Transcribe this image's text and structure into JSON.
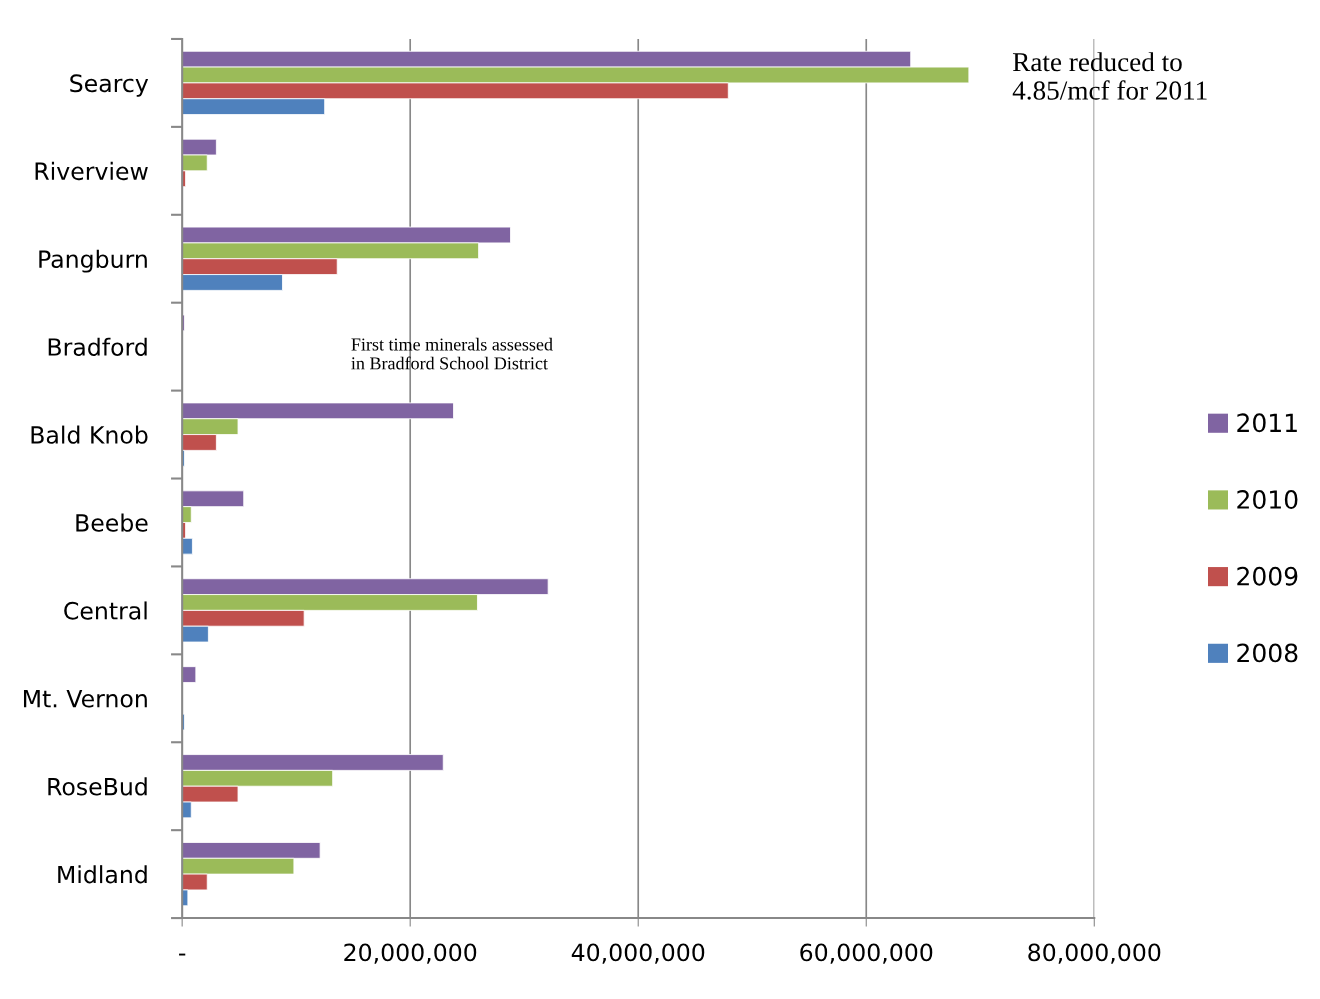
{
  "chart_data": {
    "type": "bar",
    "orientation": "horizontal",
    "categories": [
      "Searcy",
      "Riverview",
      "Pangburn",
      "Bradford",
      "Bald Knob",
      "Beebe",
      "Central",
      "Mt. Vernon",
      "RoseBud",
      "Midland"
    ],
    "series": [
      {
        "name": "2011",
        "color": "#8064a2",
        "values": [
          63900000,
          3000000,
          28800000,
          200000,
          23800000,
          5400000,
          32100000,
          1200000,
          22900000,
          12100000
        ]
      },
      {
        "name": "2010",
        "color": "#9bbb59",
        "values": [
          69000000,
          2200000,
          26000000,
          null,
          4900000,
          800000,
          25900000,
          null,
          13200000,
          9800000
        ]
      },
      {
        "name": "2009",
        "color": "#c0504d",
        "values": [
          47900000,
          300000,
          13600000,
          null,
          3000000,
          300000,
          10700000,
          null,
          4900000,
          2200000
        ]
      },
      {
        "name": "2008",
        "color": "#4f81bd",
        "values": [
          12500000,
          null,
          8800000,
          null,
          200000,
          900000,
          2300000,
          200000,
          800000,
          500000
        ]
      }
    ],
    "xlim": [
      0,
      80000000
    ],
    "xticks": [
      {
        "value": 0,
        "label": "-"
      },
      {
        "value": 20000000,
        "label": "20,000,000"
      },
      {
        "value": 40000000,
        "label": "40,000,000"
      },
      {
        "value": 60000000,
        "label": "60,000,000"
      },
      {
        "value": 80000000,
        "label": "80,000,000"
      }
    ],
    "grid": "x",
    "legend": "right",
    "annotations": [
      "Rate reduced to\n4.85/mcf for 2011",
      "First time minerals assessed\nin Bradford School District"
    ]
  }
}
